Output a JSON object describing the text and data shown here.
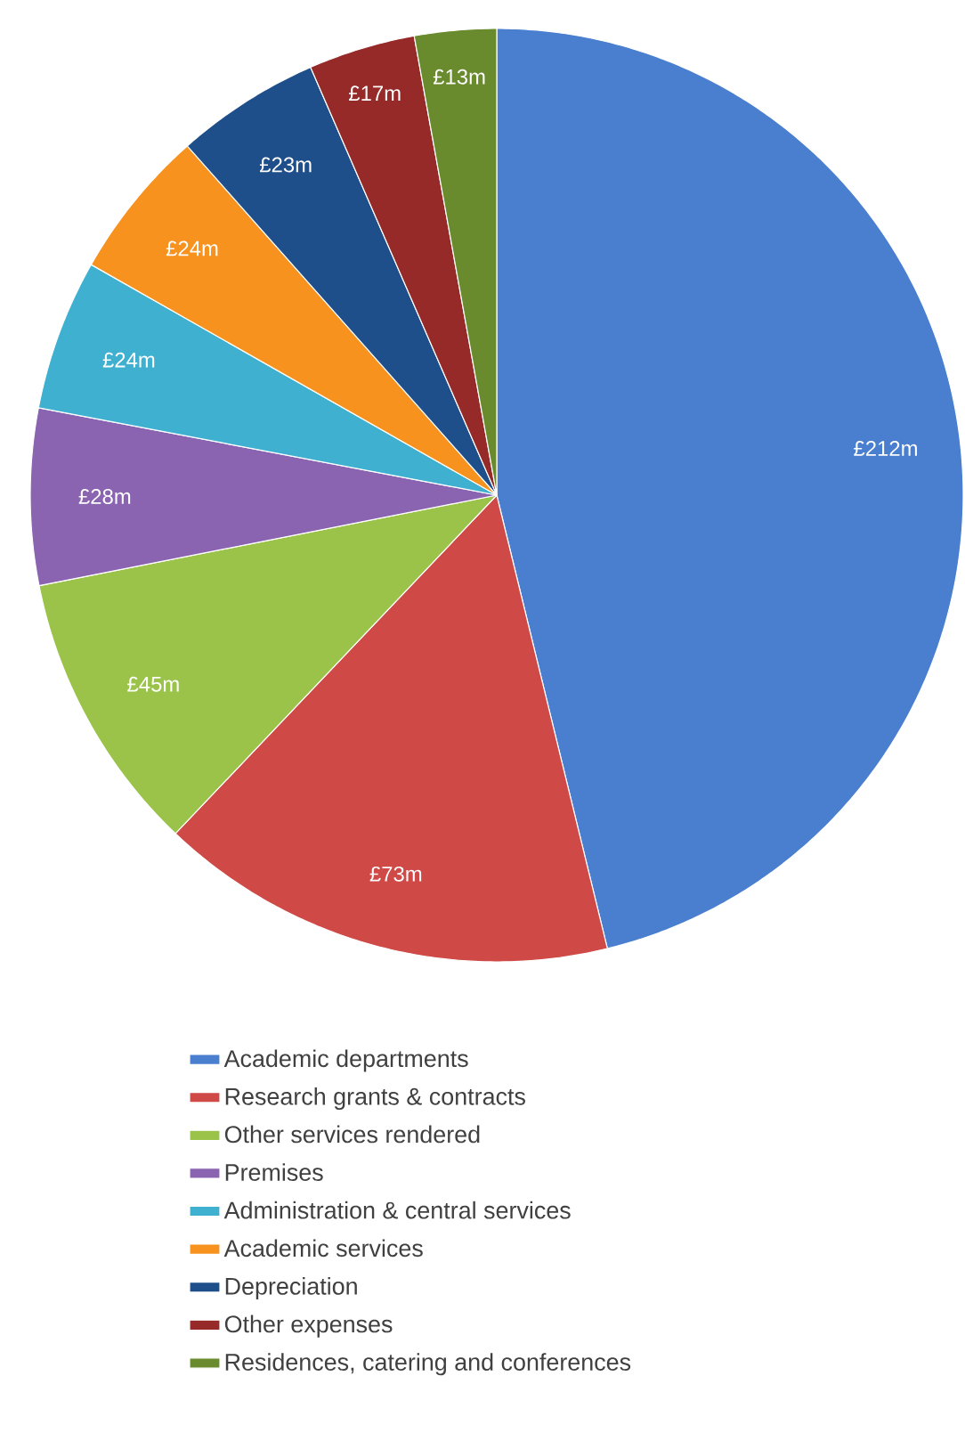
{
  "chart_data": {
    "type": "pie",
    "categories": [
      "Academic departments",
      "Research grants & contracts",
      "Other services rendered",
      "Premises",
      "Administration & central services",
      "Academic services",
      "Depreciation",
      "Other expenses",
      "Residences, catering and conferences"
    ],
    "values": [
      212,
      73,
      45,
      28,
      24,
      24,
      23,
      17,
      13
    ],
    "colors": [
      "#4a7fcf",
      "#cf4a47",
      "#9bc34a",
      "#8a64b0",
      "#3fb0cf",
      "#f7921e",
      "#1f4f8a",
      "#962a28",
      "#6a8a2e"
    ],
    "value_labels": [
      "£212m",
      "£73m",
      "£45m",
      "£28m",
      "£24m",
      "£24m",
      "£23m",
      "£17m",
      "£13m"
    ],
    "legend": "bottom"
  }
}
